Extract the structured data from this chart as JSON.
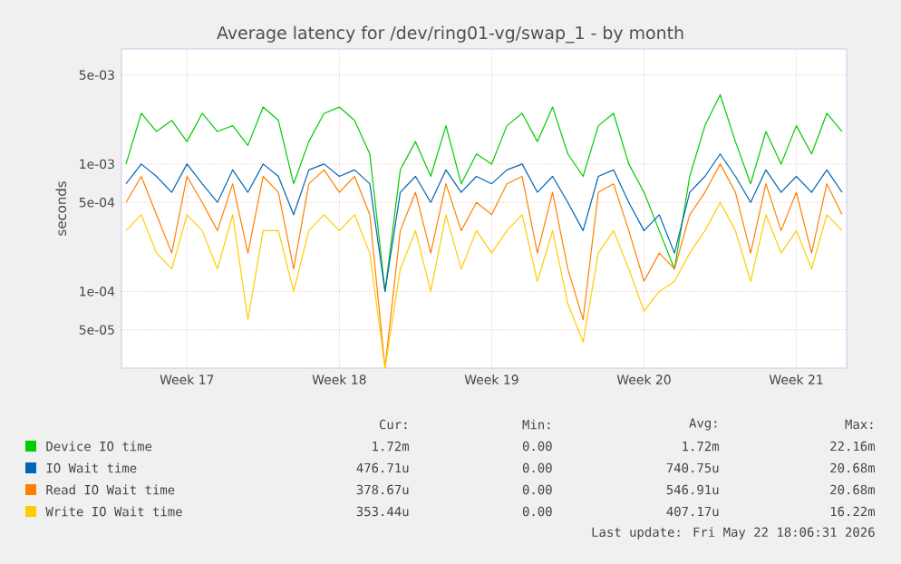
{
  "chart_data": {
    "type": "line",
    "title": "Average latency for /dev/ring01-vg/swap_1 - by month",
    "ylabel": "seconds",
    "log": "y",
    "grid": true,
    "legend": "bottom",
    "categories": [
      null,
      null,
      null,
      null,
      "Week 17",
      null,
      null,
      null,
      null,
      null,
      null,
      null,
      null,
      null,
      "Week 18",
      null,
      null,
      null,
      null,
      null,
      null,
      null,
      null,
      null,
      "Week 19",
      null,
      null,
      null,
      null,
      null,
      null,
      null,
      null,
      null,
      "Week 20",
      null,
      null,
      null,
      null,
      null,
      null,
      null,
      null,
      null,
      "Week 21",
      null,
      null,
      null
    ],
    "ylim": [
      2.5e-05,
      0.008
    ],
    "yticks": [
      {
        "value": 5e-05,
        "label": "5e-05"
      },
      {
        "value": 0.0001,
        "label": "1e-04"
      },
      {
        "value": 0.0005,
        "label": "5e-04"
      },
      {
        "value": 0.001,
        "label": "1e-03"
      },
      {
        "value": 0.005,
        "label": "5e-03"
      }
    ],
    "series": [
      {
        "name": "Device IO time",
        "color": "#00cc00",
        "values": [
          0.001,
          0.0025,
          0.0018,
          0.0022,
          0.0015,
          0.0025,
          0.0018,
          0.002,
          0.0014,
          0.0028,
          0.0022,
          0.0007,
          0.0015,
          0.0025,
          0.0028,
          0.0022,
          0.0012,
          0.0001,
          0.0009,
          0.0015,
          0.0008,
          0.002,
          0.0007,
          0.0012,
          0.001,
          0.002,
          0.0025,
          0.0015,
          0.0028,
          0.0012,
          0.0008,
          0.002,
          0.0025,
          0.001,
          0.0006,
          0.0003,
          0.00015,
          0.0008,
          0.002,
          0.0035,
          0.0015,
          0.0007,
          0.0018,
          0.001,
          0.002,
          0.0012,
          0.0025,
          0.0018
        ]
      },
      {
        "name": "IO Wait time",
        "color": "#0066b3",
        "values": [
          0.0007,
          0.001,
          0.0008,
          0.0006,
          0.001,
          0.0007,
          0.0005,
          0.0009,
          0.0006,
          0.001,
          0.0008,
          0.0004,
          0.0009,
          0.001,
          0.0008,
          0.0009,
          0.0007,
          0.0001,
          0.0006,
          0.0008,
          0.0005,
          0.0009,
          0.0006,
          0.0008,
          0.0007,
          0.0009,
          0.001,
          0.0006,
          0.0008,
          0.0005,
          0.0003,
          0.0008,
          0.0009,
          0.0005,
          0.0003,
          0.0004,
          0.0002,
          0.0006,
          0.0008,
          0.0012,
          0.0008,
          0.0005,
          0.0009,
          0.0006,
          0.0008,
          0.0006,
          0.0009,
          0.0006
        ]
      },
      {
        "name": "Read IO Wait time",
        "color": "#ff8000",
        "values": [
          0.0005,
          0.0008,
          0.0004,
          0.0002,
          0.0008,
          0.0005,
          0.0003,
          0.0007,
          0.0002,
          0.0008,
          0.0006,
          0.00015,
          0.0007,
          0.0009,
          0.0006,
          0.0008,
          0.0004,
          2.5e-05,
          0.0003,
          0.0006,
          0.0002,
          0.0007,
          0.0003,
          0.0005,
          0.0004,
          0.0007,
          0.0008,
          0.0002,
          0.0006,
          0.00015,
          6e-05,
          0.0006,
          0.0007,
          0.0003,
          0.00012,
          0.0002,
          0.00015,
          0.0004,
          0.0006,
          0.001,
          0.0006,
          0.0002,
          0.0007,
          0.0003,
          0.0006,
          0.0002,
          0.0007,
          0.0004
        ]
      },
      {
        "name": "Write IO Wait time",
        "color": "#ffcc00",
        "values": [
          0.0003,
          0.0004,
          0.0002,
          0.00015,
          0.0004,
          0.0003,
          0.00015,
          0.0004,
          6e-05,
          0.0003,
          0.0003,
          0.0001,
          0.0003,
          0.0004,
          0.0003,
          0.0004,
          0.0002,
          2.5e-05,
          0.00015,
          0.0003,
          0.0001,
          0.0004,
          0.00015,
          0.0003,
          0.0002,
          0.0003,
          0.0004,
          0.00012,
          0.0003,
          8e-05,
          4e-05,
          0.0002,
          0.0003,
          0.00015,
          7e-05,
          0.0001,
          0.00012,
          0.0002,
          0.0003,
          0.0005,
          0.0003,
          0.00012,
          0.0004,
          0.0002,
          0.0003,
          0.00015,
          0.0004,
          0.0003
        ]
      }
    ],
    "annotations": [
      "Cur:",
      "Min:",
      "Avg:",
      "Max:",
      "1.72m",
      "0.00",
      "1.72m",
      "22.16m",
      "476.71u",
      "0.00",
      "740.75u",
      "20.68m",
      "378.67u",
      "0.00",
      "546.91u",
      "20.68m",
      "353.44u",
      "0.00",
      "407.17u",
      "16.22m",
      "Last update: Fri May 22 18:06:31 2026"
    ]
  }
}
